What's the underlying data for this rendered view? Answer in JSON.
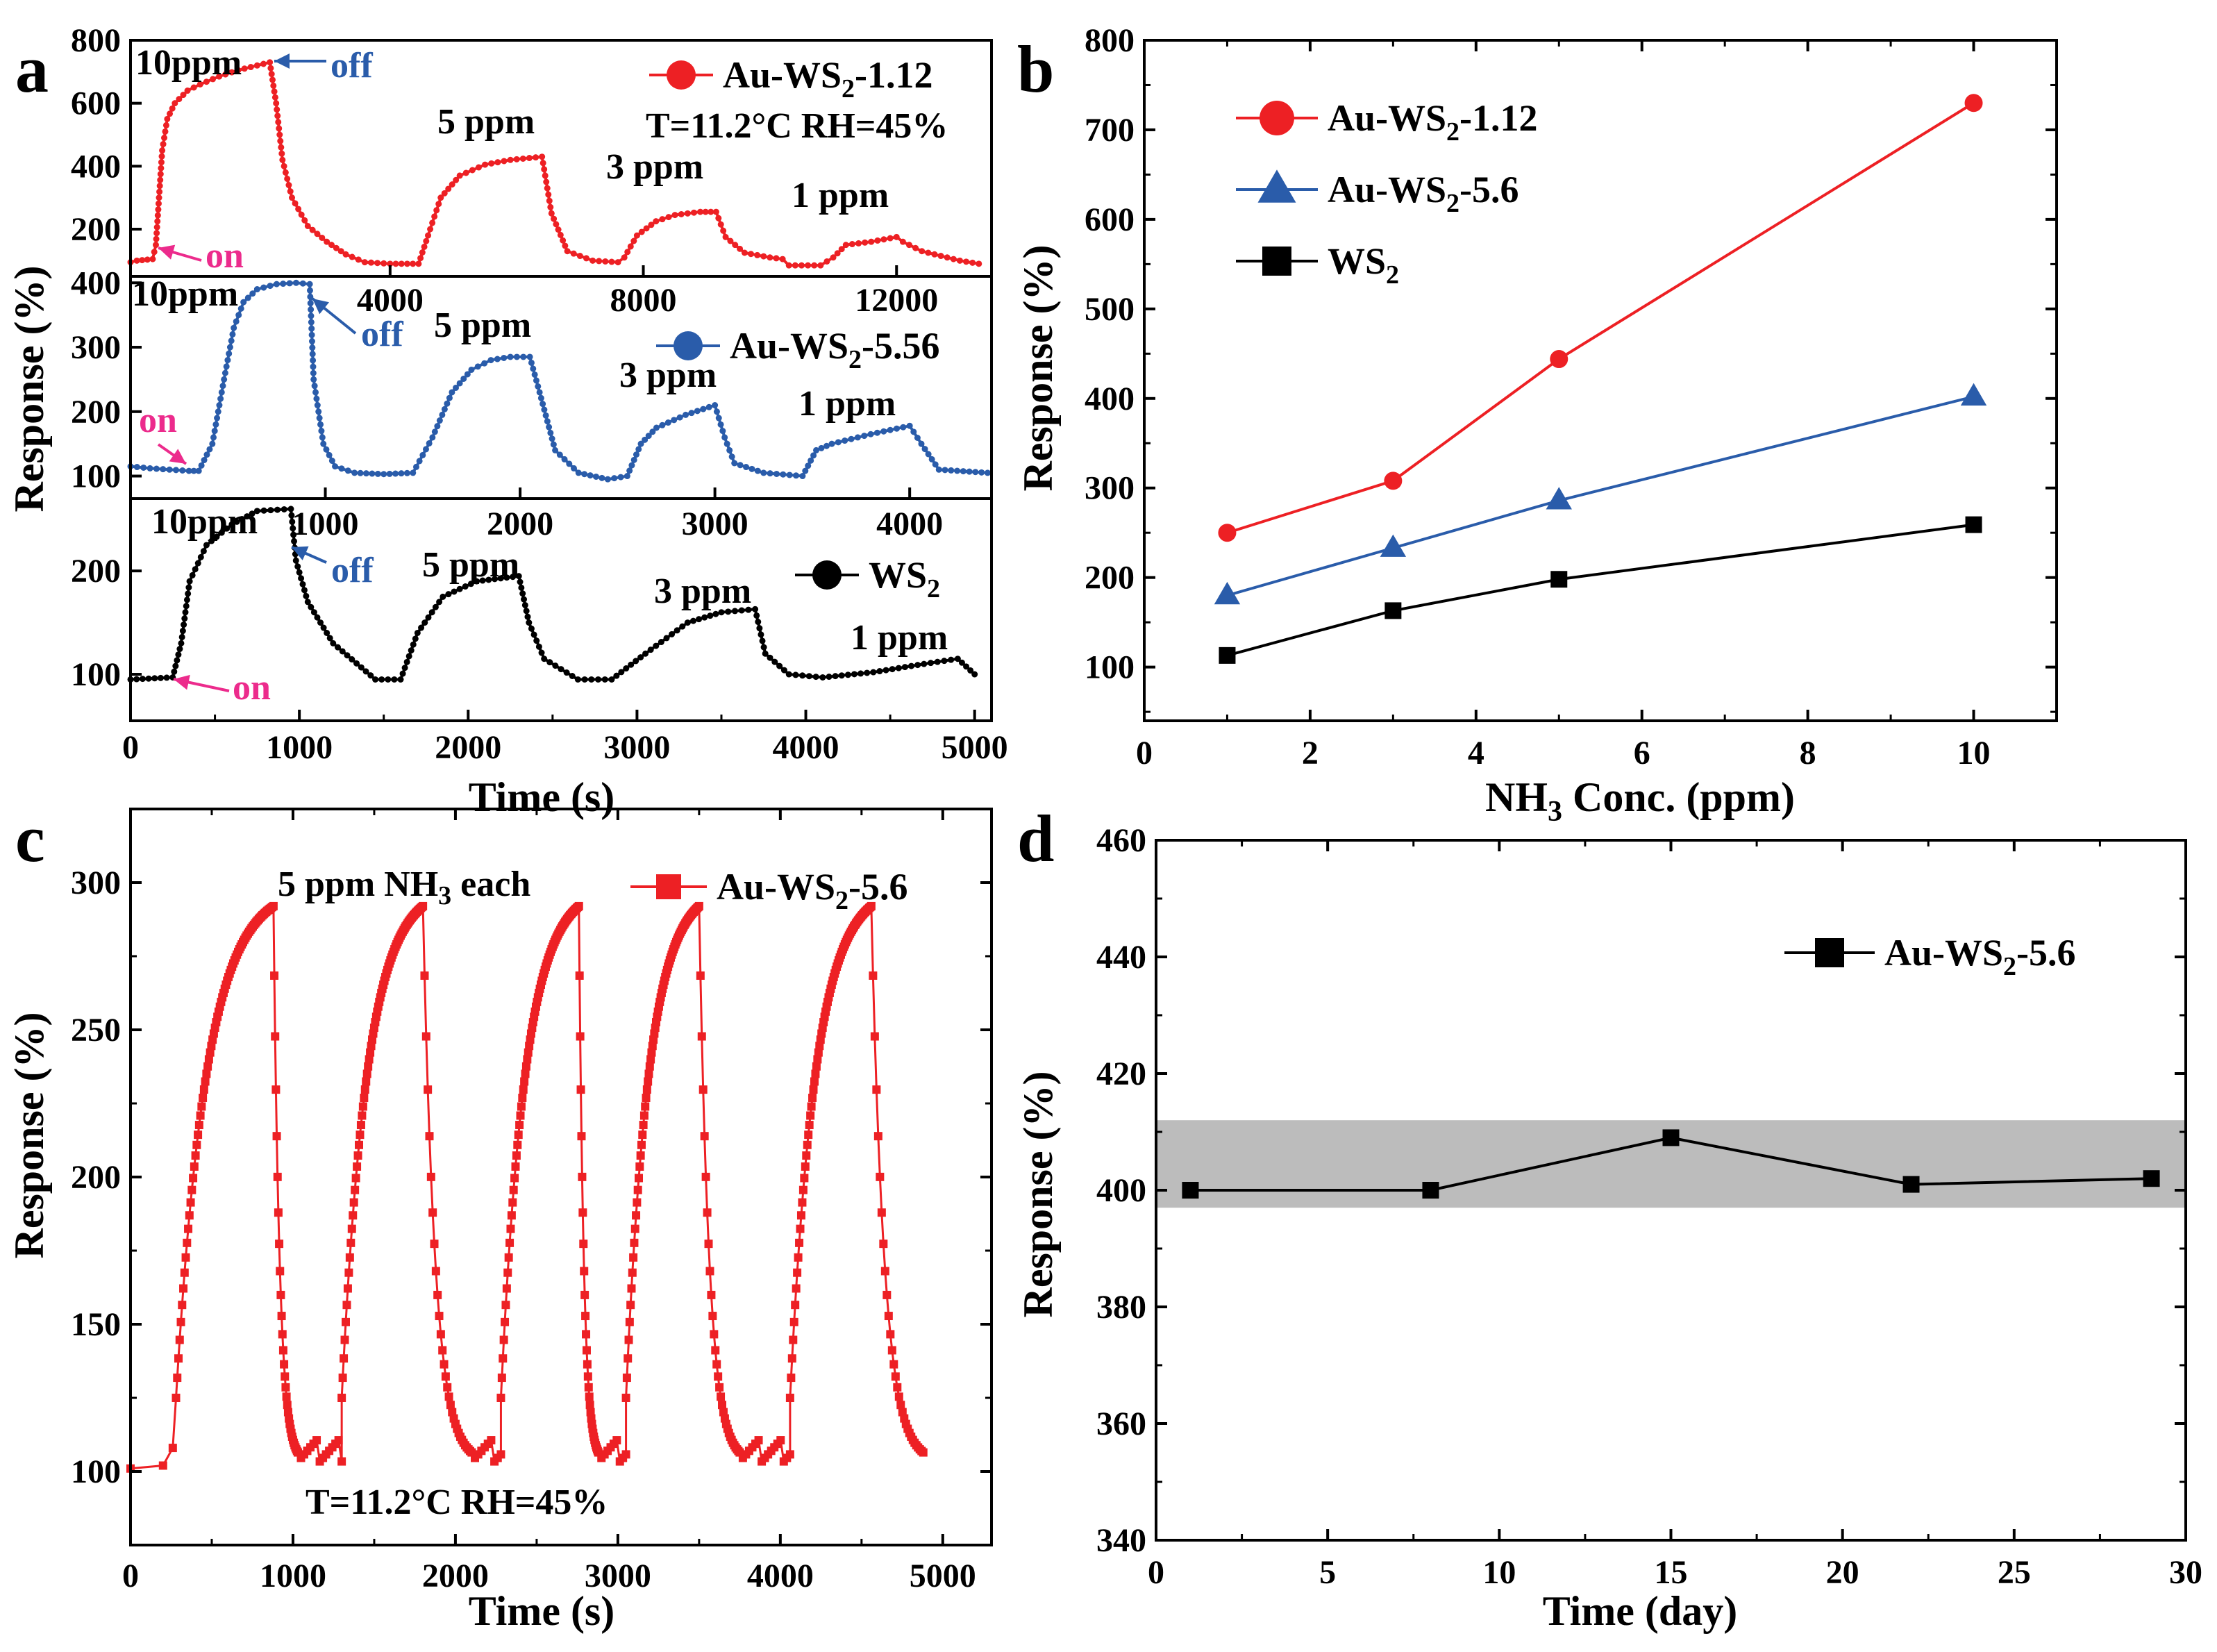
{
  "colors": {
    "red": "#ed2024",
    "blue": "#2a5caa",
    "black": "#000000",
    "pink": "#ec2b8c",
    "band": "#bcbcbc"
  },
  "panel_labels": {
    "a": "a",
    "b": "b",
    "c": "c",
    "d": "d"
  },
  "chart_data": [
    {
      "id": "a1",
      "panel": "a",
      "type": "line",
      "series": [
        {
          "name": "Au-WS2-1.12",
          "legend_base": "Au-WS",
          "legend_sub": "2",
          "legend_tail": "-1.12",
          "color": "#ed2024",
          "marker": "circle"
        }
      ],
      "xlim": [
        -100,
        13500
      ],
      "ylim": [
        50,
        800
      ],
      "xticks": [
        4000,
        8000,
        12000
      ],
      "yticks": [
        200,
        400,
        600,
        800
      ],
      "condition": "T=11.2°C  RH=45%",
      "annotations": [
        {
          "text": "10ppm"
        },
        {
          "text": "off"
        },
        {
          "text": "on"
        },
        {
          "text": "5 ppm"
        },
        {
          "text": "3 ppm"
        },
        {
          "text": "1 ppm"
        }
      ],
      "trace": [
        [
          -100,
          95
        ],
        [
          0,
          100
        ],
        [
          250,
          105
        ],
        [
          300,
          150
        ],
        [
          350,
          300
        ],
        [
          400,
          450
        ],
        [
          480,
          550
        ],
        [
          600,
          600
        ],
        [
          800,
          640
        ],
        [
          1000,
          660
        ],
        [
          1300,
          685
        ],
        [
          1600,
          705
        ],
        [
          2000,
          725
        ],
        [
          2100,
          730
        ],
        [
          2200,
          600
        ],
        [
          2300,
          420
        ],
        [
          2450,
          300
        ],
        [
          2700,
          210
        ],
        [
          3000,
          160
        ],
        [
          3300,
          120
        ],
        [
          3600,
          95
        ],
        [
          4000,
          90
        ],
        [
          4450,
          90
        ],
        [
          4600,
          180
        ],
        [
          4800,
          300
        ],
        [
          5100,
          370
        ],
        [
          5500,
          405
        ],
        [
          5900,
          420
        ],
        [
          6400,
          430
        ],
        [
          6550,
          250
        ],
        [
          6800,
          130
        ],
        [
          7200,
          100
        ],
        [
          7600,
          95
        ],
        [
          7700,
          110
        ],
        [
          7900,
          180
        ],
        [
          8200,
          225
        ],
        [
          8500,
          245
        ],
        [
          8900,
          255
        ],
        [
          9150,
          255
        ],
        [
          9300,
          175
        ],
        [
          9600,
          125
        ],
        [
          10000,
          110
        ],
        [
          10200,
          105
        ],
        [
          10300,
          85
        ],
        [
          10800,
          85
        ],
        [
          11000,
          110
        ],
        [
          11200,
          150
        ],
        [
          11600,
          160
        ],
        [
          12000,
          175
        ],
        [
          12100,
          160
        ],
        [
          12400,
          130
        ],
        [
          12800,
          110
        ],
        [
          13000,
          100
        ],
        [
          13300,
          90
        ]
      ]
    },
    {
      "id": "a2",
      "panel": "a",
      "type": "line",
      "series": [
        {
          "name": "Au-WS2-5.56",
          "legend_base": "Au-WS",
          "legend_sub": "2",
          "legend_tail": "-5.56",
          "color": "#2a5caa",
          "marker": "circle"
        }
      ],
      "ylabel": "Response (%)",
      "xlim": [
        0,
        4420
      ],
      "ylim": [
        65,
        410
      ],
      "xticks": [
        1000,
        2000,
        3000,
        4000
      ],
      "yticks": [
        100,
        200,
        300,
        400
      ],
      "annotations": [
        {
          "text": "10ppm"
        },
        {
          "text": "off"
        },
        {
          "text": "on"
        },
        {
          "text": "5 ppm"
        },
        {
          "text": "3 ppm"
        },
        {
          "text": "1 ppm"
        }
      ],
      "trace": [
        [
          0,
          115
        ],
        [
          100,
          112
        ],
        [
          200,
          110
        ],
        [
          300,
          108
        ],
        [
          350,
          108
        ],
        [
          420,
          150
        ],
        [
          480,
          250
        ],
        [
          530,
          330
        ],
        [
          580,
          370
        ],
        [
          650,
          390
        ],
        [
          750,
          398
        ],
        [
          850,
          400
        ],
        [
          920,
          398
        ],
        [
          940,
          250
        ],
        [
          990,
          150
        ],
        [
          1050,
          115
        ],
        [
          1150,
          105
        ],
        [
          1300,
          103
        ],
        [
          1450,
          105
        ],
        [
          1550,
          160
        ],
        [
          1650,
          230
        ],
        [
          1750,
          265
        ],
        [
          1850,
          280
        ],
        [
          1950,
          285
        ],
        [
          2050,
          285
        ],
        [
          2100,
          230
        ],
        [
          2180,
          140
        ],
        [
          2300,
          105
        ],
        [
          2450,
          95
        ],
        [
          2550,
          100
        ],
        [
          2620,
          150
        ],
        [
          2700,
          175
        ],
        [
          2850,
          195
        ],
        [
          3000,
          210
        ],
        [
          3050,
          160
        ],
        [
          3100,
          120
        ],
        [
          3250,
          105
        ],
        [
          3450,
          100
        ],
        [
          3520,
          140
        ],
        [
          3600,
          150
        ],
        [
          3800,
          165
        ],
        [
          4000,
          178
        ],
        [
          4060,
          150
        ],
        [
          4150,
          110
        ],
        [
          4400,
          105
        ]
      ]
    },
    {
      "id": "a3",
      "panel": "a",
      "type": "line",
      "series": [
        {
          "name": "WS2",
          "legend_base": "WS",
          "legend_sub": "2",
          "legend_tail": "",
          "color": "#000000",
          "marker": "circle"
        }
      ],
      "xlabel": "Time (s)",
      "xlim": [
        0,
        5100
      ],
      "ylim": [
        55,
        270
      ],
      "xticks": [
        0,
        1000,
        2000,
        3000,
        4000,
        5000
      ],
      "yticks": [
        100,
        200
      ],
      "annotations": [
        {
          "text": "10ppm"
        },
        {
          "text": "off"
        },
        {
          "text": "on"
        },
        {
          "text": "5 ppm"
        },
        {
          "text": "3 ppm"
        },
        {
          "text": "1 ppm"
        }
      ],
      "trace": [
        [
          0,
          95
        ],
        [
          250,
          97
        ],
        [
          300,
          130
        ],
        [
          350,
          190
        ],
        [
          450,
          225
        ],
        [
          600,
          245
        ],
        [
          750,
          258
        ],
        [
          950,
          260
        ],
        [
          980,
          210
        ],
        [
          1050,
          170
        ],
        [
          1200,
          130
        ],
        [
          1450,
          95
        ],
        [
          1600,
          95
        ],
        [
          1700,
          140
        ],
        [
          1850,
          175
        ],
        [
          2050,
          190
        ],
        [
          2300,
          195
        ],
        [
          2360,
          150
        ],
        [
          2450,
          115
        ],
        [
          2650,
          95
        ],
        [
          2850,
          95
        ],
        [
          3050,
          120
        ],
        [
          3300,
          150
        ],
        [
          3500,
          160
        ],
        [
          3700,
          163
        ],
        [
          3760,
          120
        ],
        [
          3900,
          100
        ],
        [
          4100,
          97
        ],
        [
          4400,
          102
        ],
        [
          4700,
          110
        ],
        [
          4900,
          115
        ],
        [
          5000,
          100
        ]
      ]
    },
    {
      "id": "b",
      "panel": "b",
      "type": "line",
      "xlabel": "NH3 Conc. (ppm)",
      "ylabel": "Response (%)",
      "xlim": [
        0,
        11
      ],
      "ylim": [
        40,
        800
      ],
      "xticks": [
        0,
        2,
        4,
        6,
        8,
        10
      ],
      "yticks": [
        100,
        200,
        300,
        400,
        500,
        600,
        700,
        800
      ],
      "x": [
        1,
        3,
        5,
        10
      ],
      "series": [
        {
          "name": "Au-WS2-1.12",
          "legend_base": "Au-WS",
          "legend_sub": "2",
          "legend_tail": "-1.12",
          "color": "#ed2024",
          "marker": "circle",
          "values": [
            250,
            308,
            444,
            730
          ]
        },
        {
          "name": "Au-WS2-5.6",
          "legend_base": "Au-WS",
          "legend_sub": "2",
          "legend_tail": "-5.6",
          "color": "#2a5caa",
          "marker": "triangle",
          "values": [
            180,
            233,
            286,
            402
          ]
        },
        {
          "name": "WS2",
          "legend_base": "WS",
          "legend_sub": "2",
          "legend_tail": "",
          "color": "#000000",
          "marker": "square",
          "values": [
            113,
            163,
            198,
            259
          ]
        }
      ]
    },
    {
      "id": "c",
      "panel": "c",
      "type": "line",
      "xlabel": "Time (s)",
      "ylabel": "Response (%)",
      "xlim": [
        0,
        5300
      ],
      "ylim": [
        75,
        325
      ],
      "xticks": [
        0,
        1000,
        2000,
        3000,
        4000,
        5000
      ],
      "yticks": [
        100,
        150,
        200,
        250,
        300
      ],
      "note": "5 ppm NH3 each",
      "condition": "T=11.2°C  RH=45%",
      "series": [
        {
          "name": "Au-WS2-5.6",
          "legend_base": "Au-WS",
          "legend_sub": "2",
          "legend_tail": "-5.6",
          "color": "#ed2024",
          "marker": "square"
        }
      ],
      "cycles": [
        {
          "on": 280,
          "off": 880,
          "end": 1030
        },
        {
          "on": 1300,
          "off": 1800,
          "end": 2100
        },
        {
          "on": 2280,
          "off": 2760,
          "end": 2880
        },
        {
          "on": 3050,
          "off": 3500,
          "end": 3750
        },
        {
          "on": 4060,
          "off": 4560,
          "end": 4880
        }
      ],
      "baseline": 103,
      "peak": 292
    },
    {
      "id": "d",
      "panel": "d",
      "type": "line",
      "xlabel": "Time (day)",
      "ylabel": "Response (%)",
      "xlim": [
        0,
        30
      ],
      "ylim": [
        340,
        460
      ],
      "xticks": [
        0,
        5,
        10,
        15,
        20,
        25,
        30
      ],
      "yticks": [
        340,
        360,
        380,
        400,
        420,
        440,
        460
      ],
      "band": [
        397,
        412
      ],
      "x": [
        1,
        8,
        15,
        22,
        29
      ],
      "series": [
        {
          "name": "Au-WS2-5.6",
          "legend_base": "Au-WS",
          "legend_sub": "2",
          "legend_tail": "-5.6",
          "color": "#000000",
          "marker": "square",
          "values": [
            400,
            400,
            409,
            401,
            402
          ]
        }
      ]
    }
  ]
}
